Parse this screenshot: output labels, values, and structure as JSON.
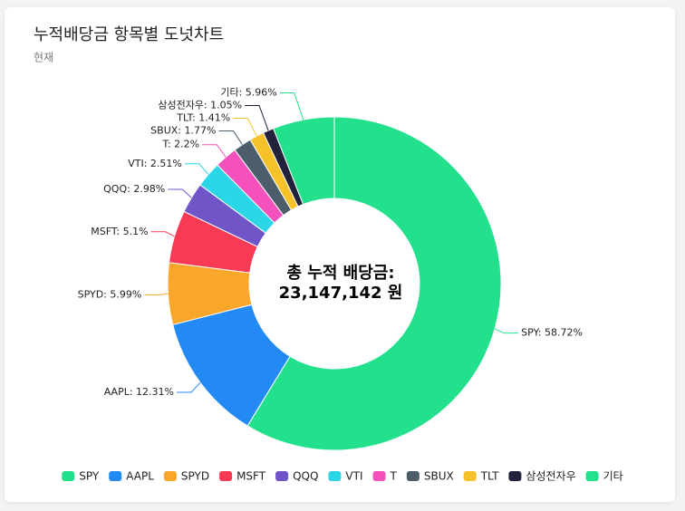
{
  "chart_data": {
    "type": "donut",
    "title": "누적배당금 항목별 도넛차트",
    "subtitle": "현재",
    "center_label": [
      "총 누적 배당금:",
      "23,147,142 원"
    ],
    "categories": [
      "SPY",
      "AAPL",
      "SPYD",
      "MSFT",
      "QQQ",
      "VTI",
      "T",
      "SBUX",
      "TLT",
      "삼성전자우",
      "기타"
    ],
    "values": [
      58.72,
      12.31,
      5.99,
      5.1,
      2.98,
      2.51,
      2.2,
      1.77,
      1.41,
      1.05,
      5.96
    ],
    "value_labels": [
      "SPY: 58.72%",
      "AAPL: 12.31%",
      "SPYD: 5.99%",
      "MSFT: 5.1%",
      "QQQ: 2.98%",
      "VTI: 2.51%",
      "T: 2.2%",
      "SBUX: 1.77%",
      "TLT: 1.41%",
      "삼성전자우: 1.05%",
      "기타: 5.96%"
    ],
    "colors": [
      "#22e08c",
      "#2389f5",
      "#f9a62b",
      "#f83a55",
      "#7055c8",
      "#2bd6e6",
      "#f551bd",
      "#4d5e6b",
      "#f6c22a",
      "#23223d",
      "#22e08c"
    ],
    "legend": "bottom"
  }
}
